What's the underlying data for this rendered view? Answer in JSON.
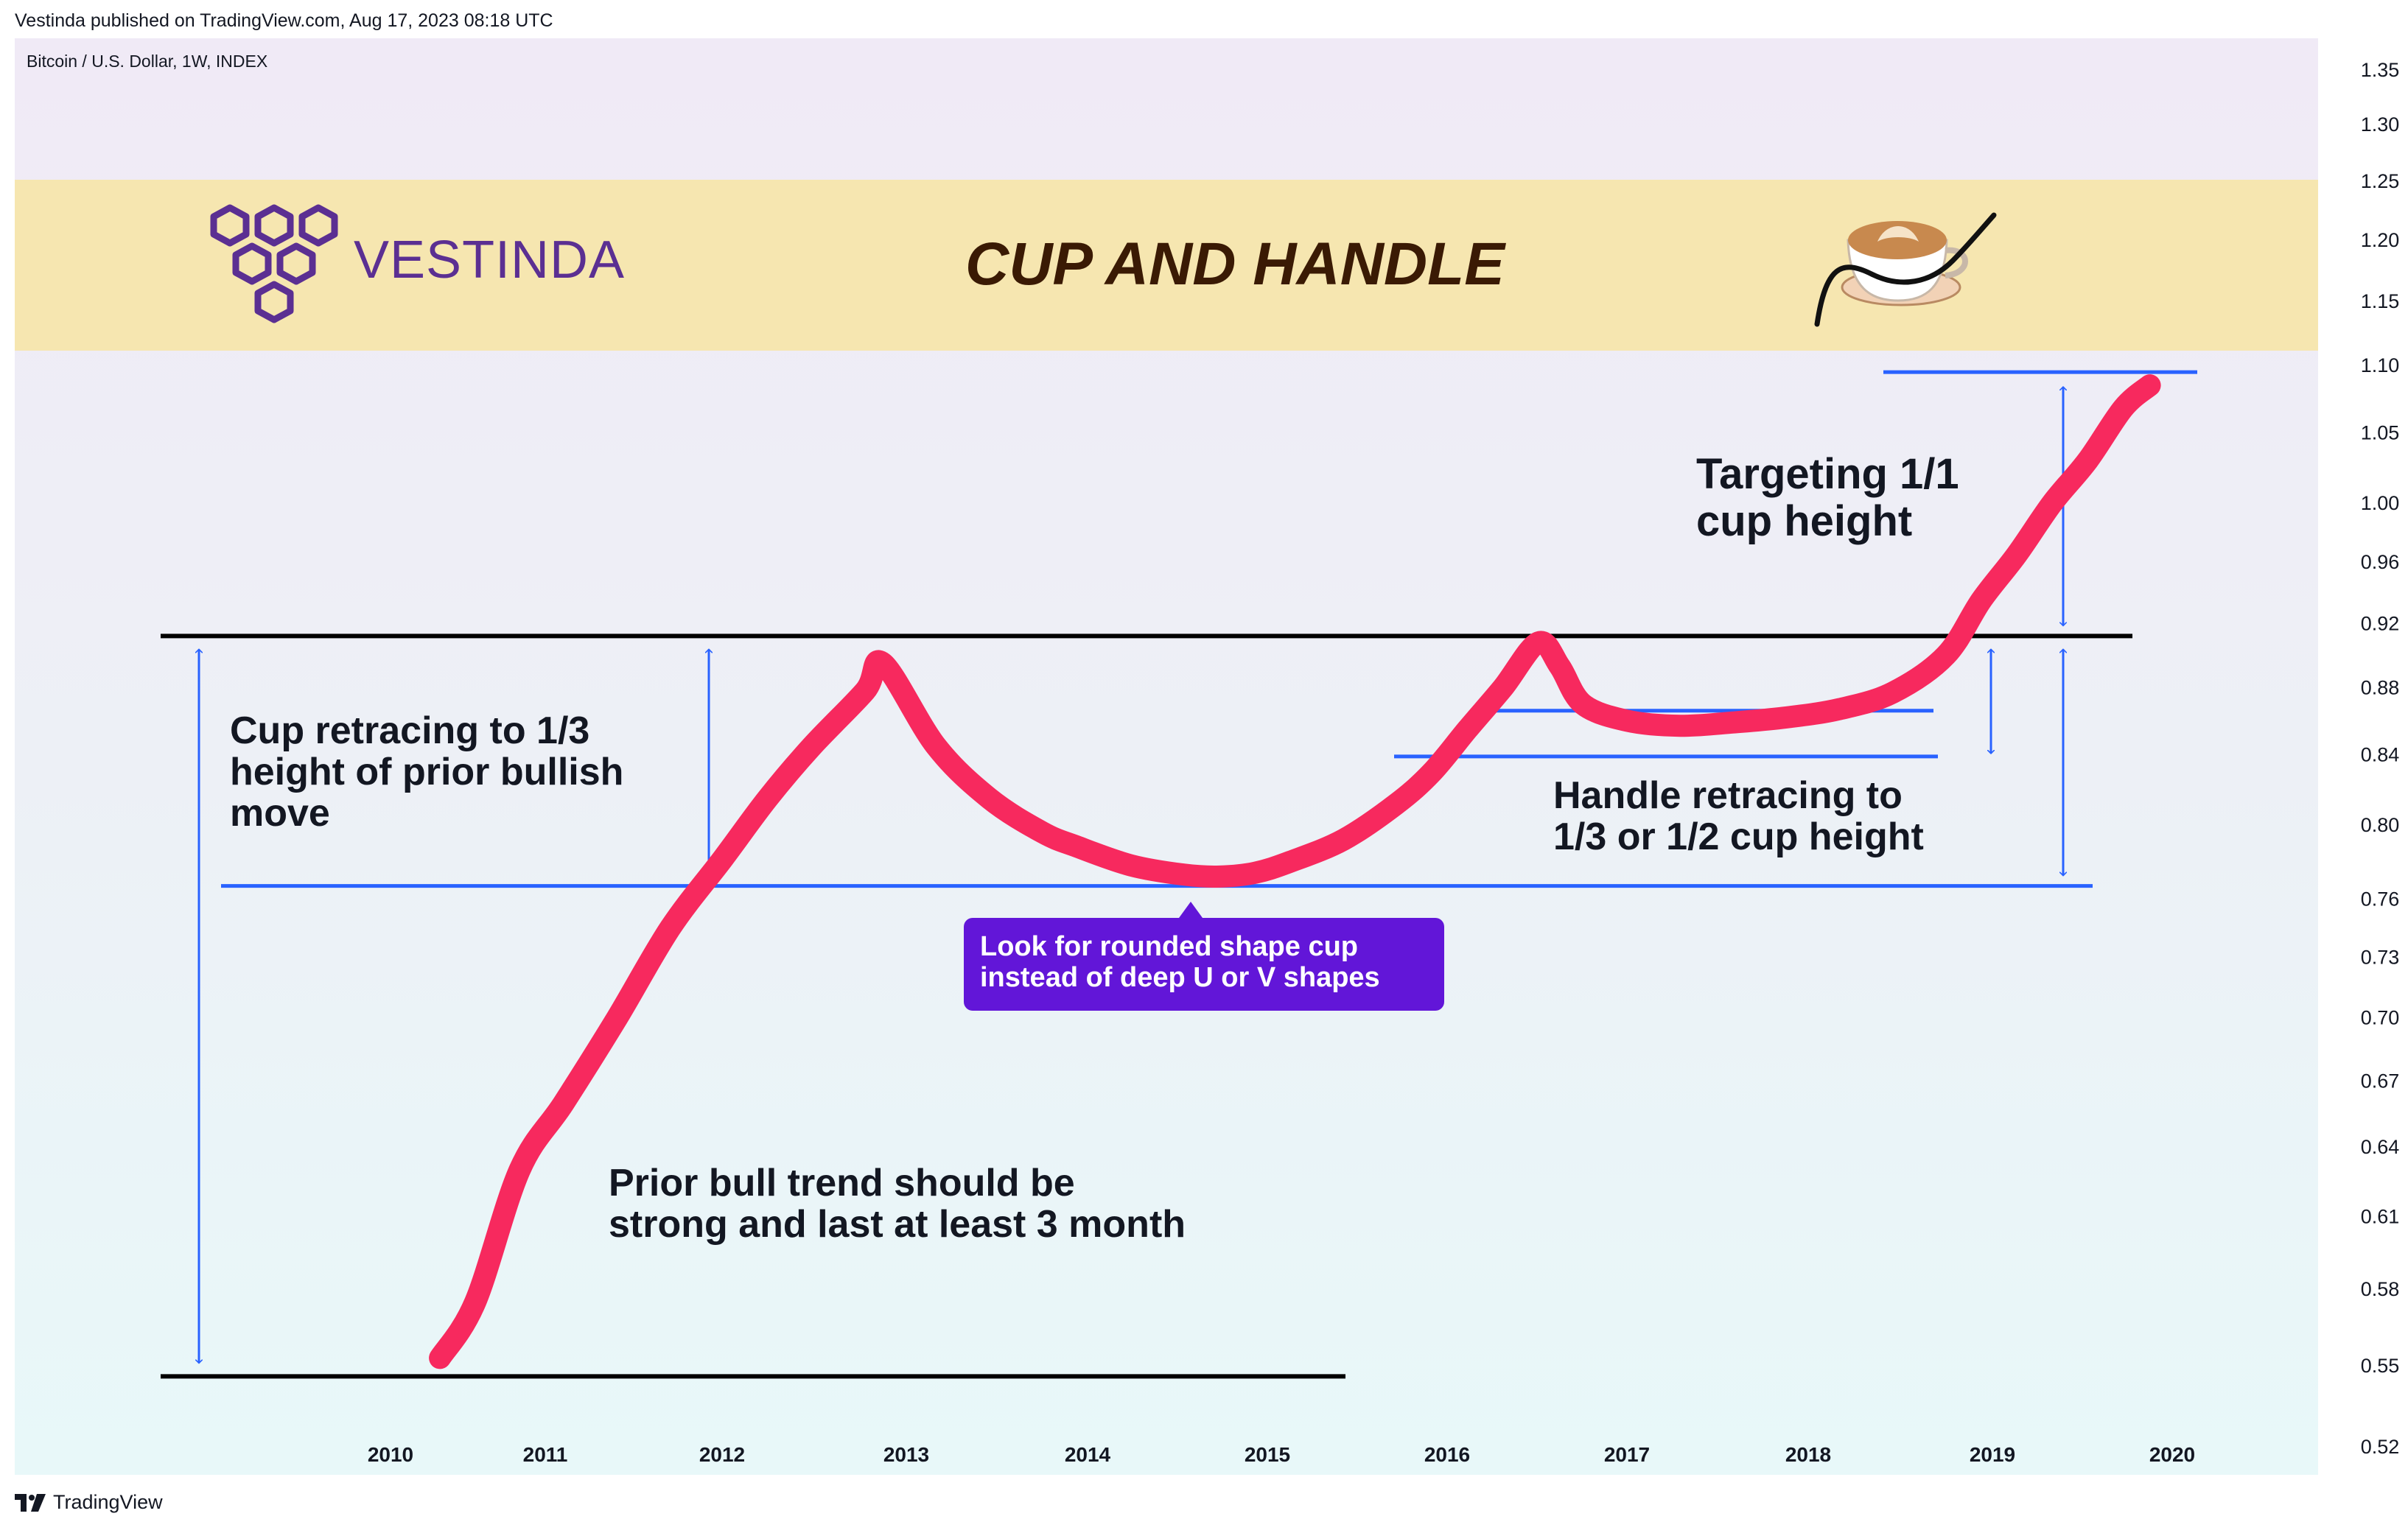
{
  "publisher": "Vestinda published on TradingView.com, Aug 17, 2023 08:18 UTC",
  "symbol": "Bitcoin / U.S. Dollar, 1W, INDEX",
  "footer_brand": "TradingView",
  "banner": {
    "brand_name": "VESTINDA",
    "title": "CUP AND HANDLE",
    "background": "#f6e6b0",
    "icon": "coffee-cup-icon"
  },
  "annotations": {
    "cup_retrace": "Cup retracing to 1/3\nheight of prior bullish\nmove",
    "prior_trend": "Prior bull trend should be\nstrong and last at least 3 month",
    "rounded_cup": "Look for rounded shape cup\ninstead of deep U or V shapes",
    "handle_retrace": "Handle retracing to\n1/3 or 1/2 cup height",
    "target": "Targeting 1/1\ncup height"
  },
  "colors": {
    "price_line": "#f7295e",
    "guide_line": "#2962ff",
    "level_line": "#000000",
    "callout": "#6216d8",
    "brand": "#5b2f92"
  },
  "chart_data": {
    "type": "line",
    "x_tick_labels": [
      "2010",
      "2011",
      "2012",
      "2013",
      "2014",
      "2015",
      "2016",
      "2017",
      "2018",
      "2019",
      "2020"
    ],
    "y_tick_labels": [
      "1.35",
      "1.30",
      "1.25",
      "1.20",
      "1.15",
      "1.10",
      "1.05",
      "1.00",
      "0.96",
      "0.92",
      "0.88",
      "0.84",
      "0.80",
      "0.76",
      "0.73",
      "0.70",
      "0.67",
      "0.64",
      "0.61",
      "0.58",
      "0.55",
      "0.52"
    ],
    "y_tick_values": [
      1.35,
      1.3,
      1.25,
      1.2,
      1.15,
      1.1,
      1.05,
      1.0,
      0.96,
      0.92,
      0.88,
      0.84,
      0.8,
      0.76,
      0.73,
      0.7,
      0.67,
      0.64,
      0.61,
      0.58,
      0.55,
      0.52
    ],
    "y_scale": "log",
    "ylim": [
      0.51,
      1.38
    ],
    "xlim": [
      2008.0,
      2021.0
    ],
    "series": [
      {
        "points": [
          [
            2010.4,
            0.553
          ],
          [
            2010.6,
            0.575
          ],
          [
            2010.85,
            0.63
          ],
          [
            2011.1,
            0.66
          ],
          [
            2011.4,
            0.7
          ],
          [
            2011.7,
            0.745
          ],
          [
            2012.0,
            0.782
          ],
          [
            2012.25,
            0.815
          ],
          [
            2012.5,
            0.845
          ],
          [
            2012.8,
            0.878
          ],
          [
            2012.9,
            0.895
          ],
          [
            2013.2,
            0.845
          ],
          [
            2013.5,
            0.815
          ],
          [
            2013.8,
            0.796
          ],
          [
            2014.0,
            0.788
          ],
          [
            2014.3,
            0.778
          ],
          [
            2014.6,
            0.773
          ],
          [
            2014.8,
            0.772
          ],
          [
            2015.0,
            0.774
          ],
          [
            2015.2,
            0.78
          ],
          [
            2015.5,
            0.792
          ],
          [
            2015.8,
            0.812
          ],
          [
            2016.0,
            0.83
          ],
          [
            2016.2,
            0.855
          ],
          [
            2016.4,
            0.88
          ],
          [
            2016.6,
            0.908
          ],
          [
            2016.72,
            0.893
          ],
          [
            2016.85,
            0.87
          ],
          [
            2017.1,
            0.86
          ],
          [
            2017.4,
            0.857
          ],
          [
            2017.7,
            0.859
          ],
          [
            2018.0,
            0.862
          ],
          [
            2018.3,
            0.867
          ],
          [
            2018.6,
            0.877
          ],
          [
            2018.9,
            0.9
          ],
          [
            2019.1,
            0.935
          ],
          [
            2019.3,
            0.965
          ],
          [
            2019.5,
            1.0
          ],
          [
            2019.7,
            1.03
          ],
          [
            2019.9,
            1.068
          ],
          [
            2020.05,
            1.085
          ]
        ]
      }
    ],
    "levels": {
      "cup_top": 0.912,
      "bottom": 0.546,
      "cup_retrace": 0.767,
      "handle_top": 0.866,
      "handle_bottom": 0.839,
      "target": 1.095
    },
    "grid": false,
    "legend": "none"
  }
}
